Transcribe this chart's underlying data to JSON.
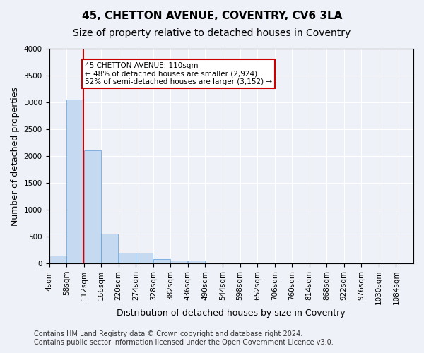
{
  "title": "45, CHETTON AVENUE, COVENTRY, CV6 3LA",
  "subtitle": "Size of property relative to detached houses in Coventry",
  "xlabel": "Distribution of detached houses by size in Coventry",
  "ylabel": "Number of detached properties",
  "bar_color": "#c5d9f0",
  "bar_edge_color": "#5b9bd5",
  "annotation_line_color": "#cc0000",
  "annotation_box_color": "#cc0000",
  "property_size": 110,
  "annotation_text": "45 CHETTON AVENUE: 110sqm\n← 48% of detached houses are smaller (2,924)\n52% of semi-detached houses are larger (3,152) →",
  "footer_line1": "Contains HM Land Registry data © Crown copyright and database right 2024.",
  "footer_line2": "Contains public sector information licensed under the Open Government Licence v3.0.",
  "bin_labels": [
    "4sqm",
    "58sqm",
    "112sqm",
    "166sqm",
    "220sqm",
    "274sqm",
    "328sqm",
    "382sqm",
    "436sqm",
    "490sqm",
    "544sqm",
    "598sqm",
    "652sqm",
    "706sqm",
    "760sqm",
    "814sqm",
    "868sqm",
    "922sqm",
    "976sqm",
    "1030sqm",
    "1084sqm"
  ],
  "bin_edges": [
    4,
    58,
    112,
    166,
    220,
    274,
    328,
    382,
    436,
    490,
    544,
    598,
    652,
    706,
    760,
    814,
    868,
    922,
    976,
    1030,
    1084
  ],
  "bar_heights": [
    150,
    3050,
    2100,
    550,
    200,
    200,
    80,
    60,
    50,
    5,
    5,
    3,
    2,
    1,
    1,
    1,
    0,
    0,
    0,
    0
  ],
  "ylim": [
    0,
    4000
  ],
  "yticks": [
    0,
    500,
    1000,
    1500,
    2000,
    2500,
    3000,
    3500,
    4000
  ],
  "background_color": "#eef2f8",
  "plot_bg_color": "#eef2f8",
  "grid_color": "#ffffff",
  "title_fontsize": 11,
  "subtitle_fontsize": 10,
  "axis_label_fontsize": 9,
  "tick_fontsize": 7.5,
  "footer_fontsize": 7
}
